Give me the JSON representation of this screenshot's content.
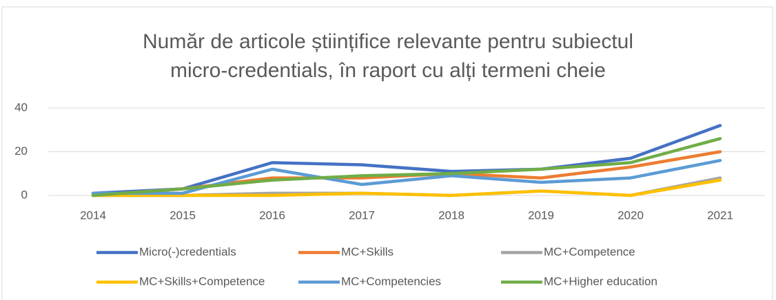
{
  "chart_data": {
    "type": "line",
    "title": "Număr de articole științifice relevante pentru subiectul micro-credentials, în raport cu alți termeni cheie",
    "categories": [
      "2014",
      "2015",
      "2016",
      "2017",
      "2018",
      "2019",
      "2020",
      "2021"
    ],
    "series": [
      {
        "name": "Micro(-)credentials",
        "color": "#4472c4",
        "values": [
          1,
          3,
          15,
          14,
          11,
          12,
          17,
          32
        ]
      },
      {
        "name": "MC+Skills",
        "color": "#ed7d31",
        "values": [
          0,
          3,
          8,
          8,
          10,
          8,
          13,
          20
        ]
      },
      {
        "name": "MC+Competence",
        "color": "#a5a5a5",
        "values": [
          0,
          0,
          1,
          1,
          0,
          2,
          0,
          8
        ]
      },
      {
        "name": "MC+Skills+Competence",
        "color": "#ffc000",
        "values": [
          0,
          0,
          0,
          1,
          0,
          2,
          0,
          7
        ]
      },
      {
        "name": "MC+Competencies",
        "color": "#5b9bd5",
        "values": [
          1,
          1,
          12,
          5,
          9,
          6,
          8,
          16
        ]
      },
      {
        "name": "MC+Higher education",
        "color": "#70ad47",
        "values": [
          0,
          3,
          7,
          9,
          10,
          12,
          15,
          26
        ]
      }
    ],
    "ylim": [
      0,
      40
    ],
    "yticks": [
      0,
      20,
      40
    ],
    "grid": true,
    "legend": "bottom"
  }
}
